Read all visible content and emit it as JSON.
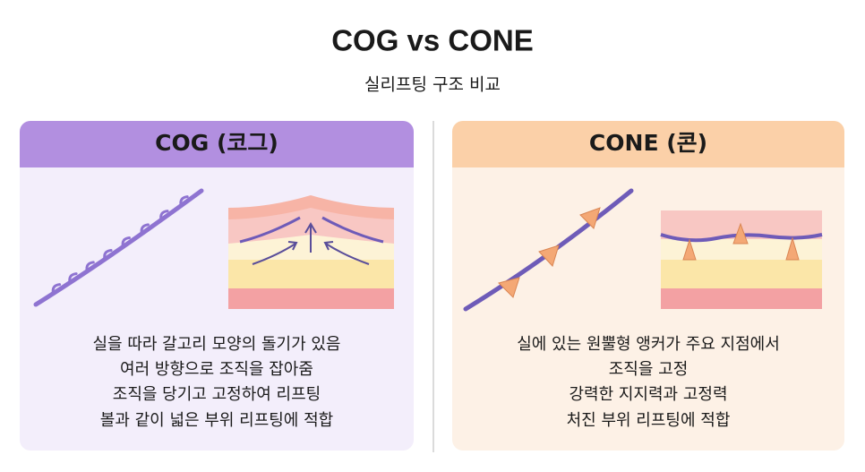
{
  "header": {
    "title": "COG vs CONE",
    "subtitle": "실리프팅 구조 비교"
  },
  "panels": [
    {
      "heading": "COG (코그)",
      "lines": [
        "실을 따라 갈고리 모양의 돌기가 있음",
        "여러 방향으로 조직을 잡아줌",
        "조직을 당기고 고정하여 리프팅",
        "볼과 같이 넓은 부위 리프팅에 적합"
      ]
    },
    {
      "heading": "CONE (콘)",
      "lines": [
        "실에 있는 원뿔형 앵커가 주요 지점에서",
        "조직을 고정",
        "강력한 지지력과 고정력",
        "처진 부위 리프팅에 적합"
      ]
    }
  ]
}
